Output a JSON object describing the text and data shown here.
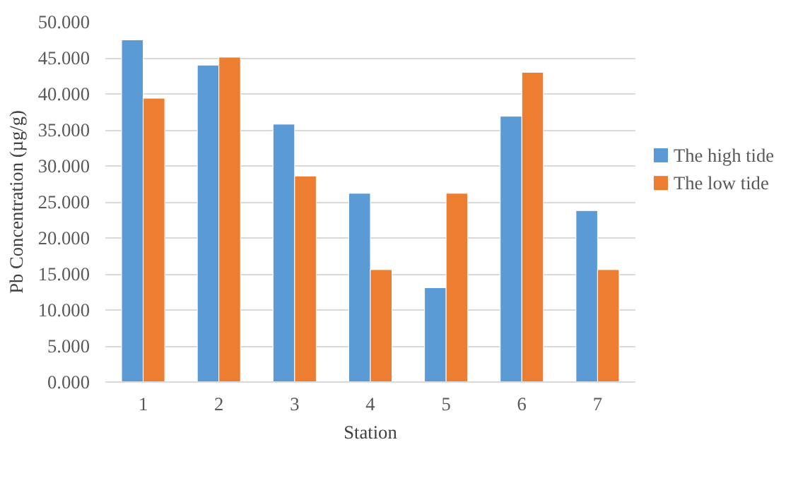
{
  "chart_data": {
    "type": "bar",
    "xlabel": "Station",
    "ylabel": "Pb Concentration (µg/g)",
    "categories": [
      "1",
      "2",
      "3",
      "4",
      "5",
      "6",
      "7"
    ],
    "series": [
      {
        "name": "The high tide",
        "color": "#5b9bd5",
        "values": [
          47.5,
          44.0,
          35.8,
          26.2,
          13.1,
          36.9,
          23.8
        ]
      },
      {
        "name": "The low tide",
        "color": "#ed7d31",
        "values": [
          39.4,
          45.1,
          28.6,
          15.6,
          26.2,
          43.0,
          15.6
        ]
      }
    ],
    "ylim": [
      0,
      50
    ],
    "yticks": [
      {
        "value": 0,
        "label": "0.000"
      },
      {
        "value": 5,
        "label": "5.000"
      },
      {
        "value": 10,
        "label": "10.000"
      },
      {
        "value": 15,
        "label": "15.000"
      },
      {
        "value": 20,
        "label": "20.000"
      },
      {
        "value": 25,
        "label": "25.000"
      },
      {
        "value": 30,
        "label": "30.000"
      },
      {
        "value": 35,
        "label": "35.000"
      },
      {
        "value": 40,
        "label": "40.000"
      },
      {
        "value": 45,
        "label": "45.000"
      },
      {
        "value": 50,
        "label": "50.000"
      }
    ],
    "grid": "y",
    "legend": "right"
  }
}
